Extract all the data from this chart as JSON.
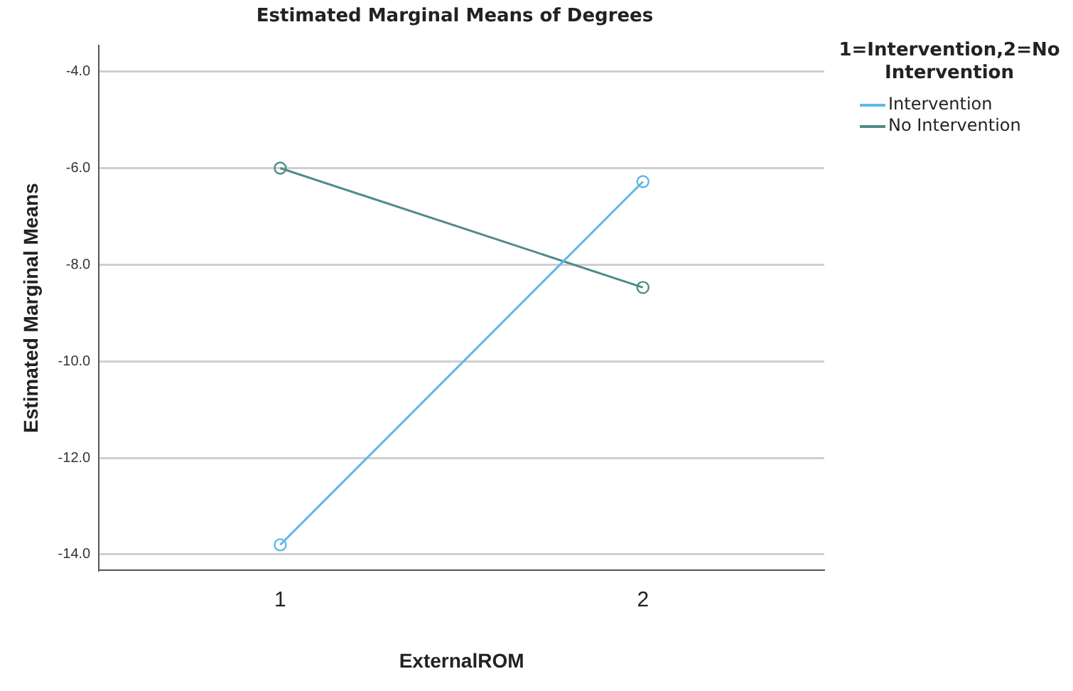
{
  "chart_data": {
    "type": "line",
    "title": "Estimated Marginal Means of Degrees",
    "xlabel": "ExternalROM",
    "ylabel": "Estimated Marginal Means",
    "legend_title": "1=Intervention,2=No Intervention",
    "categories": [
      "1",
      "2"
    ],
    "series": [
      {
        "name": "Intervention",
        "color": "#5db8ea",
        "values": [
          -13.8,
          -6.28
        ]
      },
      {
        "name": "No Intervention",
        "color": "#4f8c87",
        "values": [
          -6.0,
          -8.47
        ]
      }
    ],
    "ylim": [
      -14.33,
      -3.46
    ],
    "yticks": [
      {
        "value": -14,
        "label": "-14.0"
      },
      {
        "value": -12,
        "label": "-12.0"
      },
      {
        "value": -10,
        "label": "-10.0"
      },
      {
        "value": -8,
        "label": "-8.0"
      },
      {
        "value": -6,
        "label": "-6.0"
      },
      {
        "value": -4,
        "label": "-4.0"
      }
    ],
    "grid": "y",
    "legend": "top right",
    "marker": "circle",
    "line_style": "solid"
  }
}
